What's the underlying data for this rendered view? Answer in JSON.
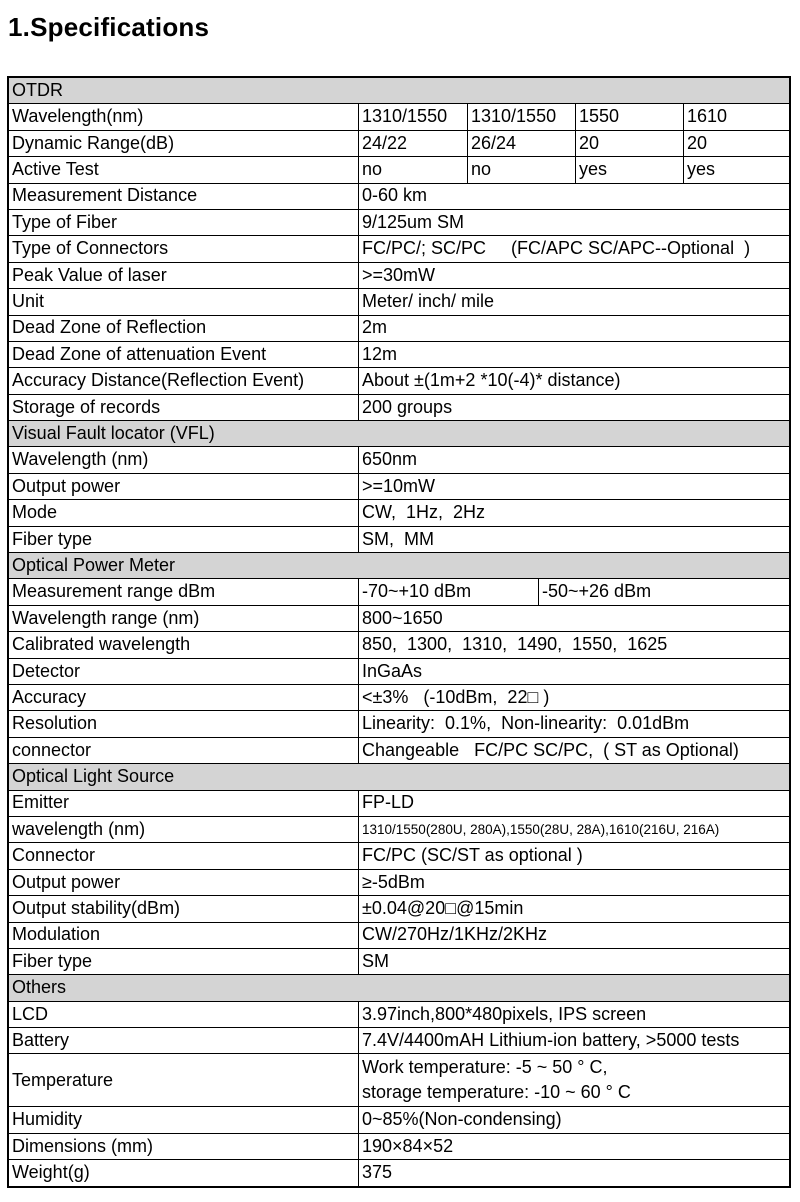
{
  "page": {
    "title": "1.Specifications"
  },
  "colors": {
    "section_bg": "#d4d4d4",
    "border": "#000000",
    "text": "#000000"
  },
  "table": {
    "rows": [
      {
        "type": "section",
        "label": "OTDR"
      },
      {
        "type": "row",
        "label": "Wavelength(nm)",
        "cells": [
          "1310/1550",
          "1310/1550",
          "1550",
          "1610"
        ]
      },
      {
        "type": "row",
        "label": "Dynamic Range(dB)",
        "cells": [
          "24/22",
          "26/24",
          "20",
          "20"
        ]
      },
      {
        "type": "row",
        "label": "Active Test",
        "cells": [
          "no",
          "no",
          "yes",
          "yes"
        ]
      },
      {
        "type": "row",
        "label": "Measurement Distance",
        "cells": [
          "0-60 km"
        ]
      },
      {
        "type": "row",
        "label": "Type of Fiber",
        "cells": [
          "9/125um SM"
        ]
      },
      {
        "type": "row",
        "label": "Type of Connectors",
        "cells": [
          "FC/PC/; SC/PC     (FC/APC SC/APC--Optional  )"
        ]
      },
      {
        "type": "row",
        "label": "Peak Value of laser",
        "cells": [
          ">=30mW"
        ]
      },
      {
        "type": "row",
        "label": "Unit",
        "cells": [
          "Meter/ inch/ mile"
        ]
      },
      {
        "type": "row",
        "label": "Dead Zone of Reflection",
        "cells": [
          "2m"
        ]
      },
      {
        "type": "row",
        "label": "Dead Zone of attenuation Event",
        "cells": [
          "12m"
        ]
      },
      {
        "type": "row",
        "label": "Accuracy Distance(Reflection Event)",
        "cells": [
          "About ±(1m+2 *10(-4)* distance)"
        ]
      },
      {
        "type": "row",
        "label": "Storage of records",
        "cells": [
          "200 groups"
        ]
      },
      {
        "type": "section",
        "label": "Visual Fault locator (VFL)"
      },
      {
        "type": "row",
        "label": "Wavelength (nm)",
        "cells": [
          "650nm"
        ]
      },
      {
        "type": "row",
        "label": "Output power",
        "cells": [
          ">=10mW"
        ]
      },
      {
        "type": "row",
        "label": "Mode",
        "cells": [
          "CW,  1Hz,  2Hz"
        ]
      },
      {
        "type": "row",
        "label": "Fiber type",
        "cells": [
          "SM,  MM"
        ]
      },
      {
        "type": "section",
        "label": "Optical Power Meter"
      },
      {
        "type": "row",
        "label": "Measurement range dBm",
        "cells": [
          "-70~+10 dBm",
          "-50~+26 dBm"
        ]
      },
      {
        "type": "row",
        "label": "Wavelength range (nm)",
        "cells": [
          "800~1650"
        ]
      },
      {
        "type": "row",
        "label": "Calibrated wavelength",
        "cells": [
          "850,  1300,  1310,  1490,  1550,  1625"
        ]
      },
      {
        "type": "row",
        "label": "Detector",
        "cells": [
          "InGaAs"
        ]
      },
      {
        "type": "row",
        "label": "Accuracy",
        "cells": [
          "<±3%   (-10dBm,  22□ )"
        ]
      },
      {
        "type": "row",
        "label": "Resolution",
        "cells": [
          "Linearity:  0.1%,  Non-linearity:  0.01dBm"
        ]
      },
      {
        "type": "row",
        "label": "connector",
        "cells": [
          "Changeable   FC/PC SC/PC,  ( ST as Optional)"
        ]
      },
      {
        "type": "section",
        "label": "Optical Light Source"
      },
      {
        "type": "row",
        "label": "Emitter",
        "cells": [
          "FP-LD"
        ]
      },
      {
        "type": "row",
        "label": "wavelength (nm)",
        "small": true,
        "cells": [
          "1310/1550(280U, 280A),1550(28U, 28A),1610(216U, 216A)"
        ]
      },
      {
        "type": "row",
        "label": "Connector",
        "cells": [
          "FC/PC (SC/ST as optional )"
        ]
      },
      {
        "type": "row",
        "label": "Output power",
        "cells": [
          "≥-5dBm"
        ]
      },
      {
        "type": "row",
        "label": "Output stability(dBm)",
        "cells": [
          "±0.04@20□@15min"
        ]
      },
      {
        "type": "row",
        "label": "Modulation",
        "cells": [
          "CW/270Hz/1KHz/2KHz"
        ]
      },
      {
        "type": "row",
        "label": "Fiber type",
        "cells": [
          "SM"
        ]
      },
      {
        "type": "section",
        "label": "Others"
      },
      {
        "type": "row",
        "label": "LCD",
        "cells": [
          "3.97inch,800*480pixels, IPS screen"
        ]
      },
      {
        "type": "row",
        "label": "Battery",
        "cells": [
          "7.4V/4400mAH Lithium-ion battery, >5000 tests"
        ]
      },
      {
        "type": "row",
        "label": "Temperature",
        "tall": true,
        "cells": [
          "Work temperature: -5 ~ 50 ° C,\nstorage temperature: -10 ~ 60 ° C"
        ]
      },
      {
        "type": "row",
        "label": "Humidity",
        "cells": [
          "0~85%(Non-condensing)"
        ]
      },
      {
        "type": "row",
        "label": "Dimensions (mm)",
        "cells": [
          "190×84×52"
        ]
      },
      {
        "type": "row",
        "label": "Weight(g)",
        "cells": [
          "375"
        ]
      }
    ]
  }
}
